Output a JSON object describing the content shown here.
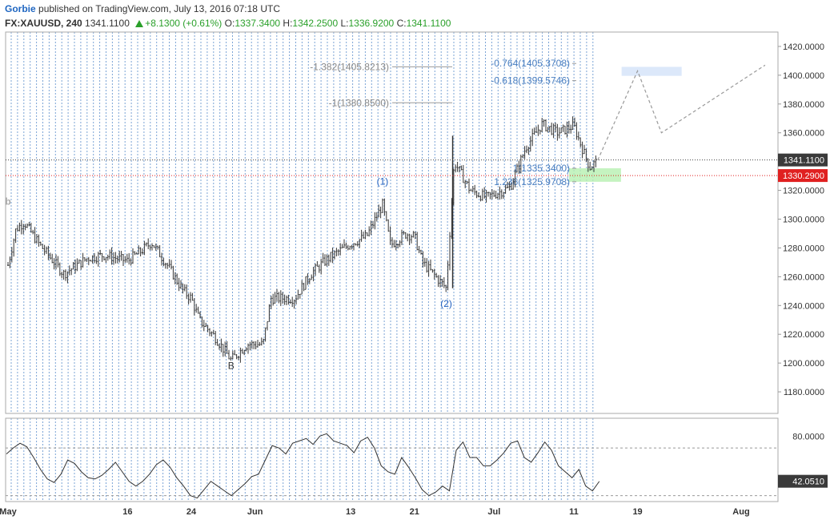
{
  "header": {
    "author": "Gorbie",
    "published": "published on TradingView.com, July 13, 2016 07:18 UTC",
    "symbol": "FX:XAUUSD, 240",
    "last": "1341.1100",
    "change": "+8.1300 (+0.61%)",
    "open_label": "O:",
    "open": "1337.3400",
    "high_label": "H:",
    "high": "1342.2500",
    "low_label": "L:",
    "low": "1336.9200",
    "close_label": "C:",
    "close": "1341.1100"
  },
  "colors": {
    "grid_dashed": "#7ba4d6",
    "candles": "#333333",
    "fib": "#888888",
    "fib_blue": "#4a7fc1",
    "green_zone": "#b6f0b0",
    "blue_zone": "#dce8fa",
    "price_tag": "#3a3a3a",
    "red_tag": "#e02020",
    "projection": "#999999"
  },
  "chart_data": [
    {
      "type": "candlestick",
      "title": "FX:XAUUSD, 240",
      "ylim": [
        1165,
        1430
      ],
      "y_ticks": [
        "1180.0000",
        "1200.0000",
        "1220.0000",
        "1240.0000",
        "1260.0000",
        "1280.0000",
        "1300.0000",
        "1320.0000",
        "1340.0000",
        "1360.0000",
        "1380.0000",
        "1400.0000",
        "1420.0000"
      ],
      "x_ticks": [
        "May",
        "16",
        "24",
        "Jun",
        "13",
        "21",
        "Jul",
        "11",
        "19",
        "Aug"
      ],
      "last_price": "1341.1100",
      "marked_price": "1330.2900",
      "close_path": [
        {
          "date": "2016-05-01",
          "close": 1268
        },
        {
          "date": "2016-05-02",
          "close": 1293
        },
        {
          "date": "2016-05-03",
          "close": 1298
        },
        {
          "date": "2016-05-05",
          "close": 1282
        },
        {
          "date": "2016-05-08",
          "close": 1262
        },
        {
          "date": "2016-05-11",
          "close": 1273
        },
        {
          "date": "2016-05-13",
          "close": 1275
        },
        {
          "date": "2016-05-16",
          "close": 1271
        },
        {
          "date": "2016-05-18",
          "close": 1279
        },
        {
          "date": "2016-05-19",
          "close": 1284
        },
        {
          "date": "2016-05-21",
          "close": 1268
        },
        {
          "date": "2016-05-23",
          "close": 1250
        },
        {
          "date": "2016-05-24",
          "close": 1245
        },
        {
          "date": "2016-05-25",
          "close": 1230
        },
        {
          "date": "2016-05-27",
          "close": 1218
        },
        {
          "date": "2016-05-29",
          "close": 1202
        },
        {
          "date": "2016-05-31",
          "close": 1213
        },
        {
          "date": "2016-06-02",
          "close": 1213
        },
        {
          "date": "2016-06-03",
          "close": 1245
        },
        {
          "date": "2016-06-06",
          "close": 1245
        },
        {
          "date": "2016-06-08",
          "close": 1262
        },
        {
          "date": "2016-06-10",
          "close": 1272
        },
        {
          "date": "2016-06-13",
          "close": 1283
        },
        {
          "date": "2016-06-15",
          "close": 1288
        },
        {
          "date": "2016-06-17",
          "close": 1310
        },
        {
          "date": "2016-06-18",
          "close": 1282
        },
        {
          "date": "2016-06-20",
          "close": 1290
        },
        {
          "date": "2016-06-21",
          "close": 1288
        },
        {
          "date": "2016-06-22",
          "close": 1270
        },
        {
          "date": "2016-06-24",
          "close": 1258
        },
        {
          "date": "2016-06-25",
          "close": 1252
        },
        {
          "date": "2016-06-26",
          "close": 1340
        },
        {
          "date": "2016-06-28",
          "close": 1320
        },
        {
          "date": "2016-06-30",
          "close": 1315
        },
        {
          "date": "2016-07-03",
          "close": 1322
        },
        {
          "date": "2016-07-05",
          "close": 1350
        },
        {
          "date": "2016-07-07",
          "close": 1366
        },
        {
          "date": "2016-07-09",
          "close": 1360
        },
        {
          "date": "2016-07-11",
          "close": 1365
        },
        {
          "date": "2016-07-12",
          "close": 1350
        },
        {
          "date": "2016-07-13",
          "close": 1336
        },
        {
          "date": "2016-07-14",
          "close": 1341
        }
      ],
      "projection": [
        {
          "date": "2016-07-14",
          "price": 1341
        },
        {
          "date": "2016-07-19",
          "price": 1403
        },
        {
          "date": "2016-07-22",
          "price": 1360
        },
        {
          "date": "2016-08-04",
          "price": 1407
        }
      ],
      "fib_levels": [
        {
          "label": "-1.382(1405.8213)",
          "price": 1405.8213
        },
        {
          "label": "-1(1380.8500)",
          "price": 1380.85
        },
        {
          "label": "-0.764(1405.3708)",
          "price": 1405.3708
        },
        {
          "label": "-0.618(1399.5746)",
          "price": 1399.5746
        },
        {
          "label": "1(1335.3400)",
          "price": 1335.34
        },
        {
          "label": "1.236(1325.9708)",
          "price": 1325.9708
        }
      ],
      "wave_labels": [
        {
          "text": "b",
          "date": "2016-05-01",
          "price": 1310
        },
        {
          "text": "B",
          "date": "2016-05-29",
          "price": 1196
        },
        {
          "text": "(1)",
          "date": "2016-06-17",
          "price": 1324
        },
        {
          "text": "(2)",
          "date": "2016-06-25",
          "price": 1239
        }
      ]
    },
    {
      "type": "line",
      "title": "",
      "ylim": [
        25,
        95
      ],
      "y_ticks": [
        "80.0000"
      ],
      "reference_lines": [
        70,
        30
      ],
      "last_value": "42.0510",
      "values": [
        65,
        70,
        74,
        71,
        62,
        52,
        44,
        41,
        48,
        60,
        57,
        50,
        45,
        44,
        47,
        52,
        58,
        50,
        42,
        38,
        42,
        48,
        56,
        60,
        54,
        45,
        38,
        30,
        28,
        35,
        42,
        38,
        34,
        30,
        35,
        40,
        46,
        48,
        60,
        72,
        70,
        65,
        74,
        76,
        78,
        73,
        80,
        82,
        76,
        74,
        72,
        66,
        76,
        79,
        70,
        55,
        50,
        48,
        62,
        54,
        45,
        35,
        30,
        33,
        38,
        34,
        68,
        75,
        62,
        62,
        55,
        55,
        60,
        66,
        74,
        76,
        62,
        58,
        66,
        75,
        68,
        55,
        50,
        45,
        52,
        38,
        34,
        42
      ]
    }
  ]
}
